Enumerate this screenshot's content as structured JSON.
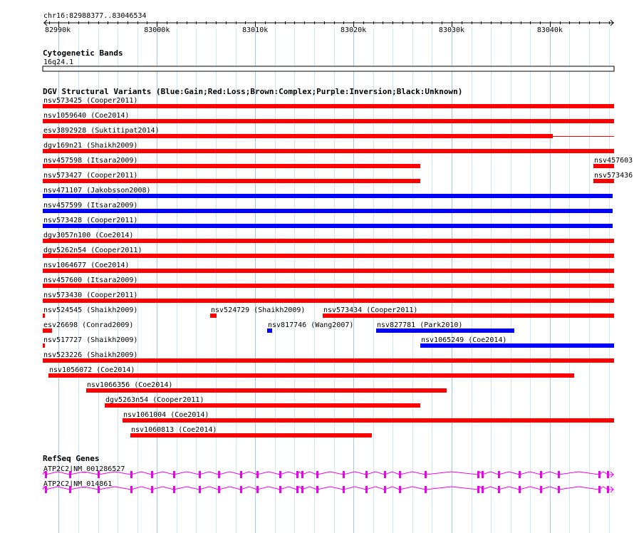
{
  "region": {
    "label": "chr16:82988377..83046534",
    "start": 82988377,
    "end": 83046534,
    "ticks": [
      {
        "pos": 82990000,
        "label": "82990k"
      },
      {
        "pos": 83000000,
        "label": "83000k"
      },
      {
        "pos": 83010000,
        "label": "83010k"
      },
      {
        "pos": 83020000,
        "label": "83020k"
      },
      {
        "pos": 83030000,
        "label": "83030k"
      },
      {
        "pos": 83040000,
        "label": "83040k"
      }
    ]
  },
  "cytobands": {
    "title": "Cytogenetic Bands",
    "band": "16q24.1"
  },
  "dgv": {
    "title": "DGV Structural Variants (Blue:Gain;Red:Loss;Brown:Complex;Purple:Inversion;Black:Unknown)",
    "colors": {
      "loss": "#ff0000",
      "gain": "#0000ff"
    },
    "rows": [
      [
        {
          "name": "nsv573425 (Cooper2011)",
          "type": "loss",
          "start": 82988377,
          "end": 83046534
        }
      ],
      [
        {
          "name": "nsv1059640 (Coe2014)",
          "type": "loss",
          "start": 82988377,
          "end": 83046534
        }
      ],
      [
        {
          "name": "esv3892928 (Suktitipat2014)",
          "type": "loss",
          "start": 82988377,
          "end": 83040300,
          "thin_end": 83046534
        }
      ],
      [
        {
          "name": "dgv169n21 (Shaikh2009)",
          "type": "loss",
          "start": 82988377,
          "end": 83046534
        }
      ],
      [
        {
          "name": "nsv457598 (Itsara2009)",
          "type": "loss",
          "start": 82988377,
          "end": 83026800
        },
        {
          "name": "nsv457603",
          "type": "loss",
          "start": 83044400,
          "end": 83046534
        }
      ],
      [
        {
          "name": "nsv573427 (Cooper2011)",
          "type": "loss",
          "start": 82988377,
          "end": 83026800
        },
        {
          "name": "nsv573436",
          "type": "loss",
          "start": 83044400,
          "end": 83046534
        }
      ],
      [
        {
          "name": "nsv471107 (Jakobsson2008)",
          "type": "gain",
          "start": 82988377,
          "end": 83046400
        }
      ],
      [
        {
          "name": "nsv457599 (Itsara2009)",
          "type": "gain",
          "start": 82988377,
          "end": 83046400
        }
      ],
      [
        {
          "name": "nsv573428 (Cooper2011)",
          "type": "gain",
          "start": 82988377,
          "end": 83046400
        }
      ],
      [
        {
          "name": "dgv3057n100 (Coe2014)",
          "type": "loss",
          "start": 82988377,
          "end": 83046534
        }
      ],
      [
        {
          "name": "dgv5262n54 (Cooper2011)",
          "type": "loss",
          "start": 82988377,
          "end": 83046534
        }
      ],
      [
        {
          "name": "nsv1064677 (Coe2014)",
          "type": "loss",
          "start": 82988377,
          "end": 83046534
        }
      ],
      [
        {
          "name": "nsv457600 (Itsara2009)",
          "type": "loss",
          "start": 82988377,
          "end": 83046534
        }
      ],
      [
        {
          "name": "nsv573430 (Cooper2011)",
          "type": "loss",
          "start": 82988377,
          "end": 83046534
        }
      ],
      [
        {
          "name": "nsv524545 (Shaikh2009)",
          "type": "loss",
          "start": 82988377,
          "end": 82988550
        },
        {
          "name": "nsv524729 (Shaikh2009)",
          "type": "loss",
          "start": 83005450,
          "end": 83006050
        },
        {
          "name": "nsv573434 (Cooper2011)",
          "type": "loss",
          "start": 83016900,
          "end": 83046534
        }
      ],
      [
        {
          "name": "esv26698 (Conrad2009)",
          "type": "loss",
          "start": 82988377,
          "end": 82989300
        },
        {
          "name": "nsv817746 (Wang2007)",
          "type": "gain",
          "start": 83011200,
          "end": 83011700
        },
        {
          "name": "nsv827781 (Park2010)",
          "type": "gain",
          "start": 83022300,
          "end": 83036400
        }
      ],
      [
        {
          "name": "nsv517727 (Shaikh2009)",
          "type": "loss",
          "start": 82988377,
          "end": 82988520
        },
        {
          "name": "nsv1065249 (Coe2014)",
          "type": "gain",
          "start": 83026800,
          "end": 83046534
        }
      ],
      [
        {
          "name": "nsv523226 (Shaikh2009)",
          "type": "loss",
          "start": 82988377,
          "end": 83046534
        }
      ],
      [
        {
          "name": "nsv1056072 (Coe2014)",
          "type": "loss",
          "start": 82988950,
          "end": 83042500
        }
      ],
      [
        {
          "name": "nsv1066356 (Coe2014)",
          "type": "loss",
          "start": 82992800,
          "end": 83029500
        }
      ],
      [
        {
          "name": "dgv5263n54 (Cooper2011)",
          "type": "loss",
          "start": 82994700,
          "end": 83026800
        }
      ],
      [
        {
          "name": "nsv1061004 (Coe2014)",
          "type": "loss",
          "start": 82996500,
          "end": 83046534
        }
      ],
      [
        {
          "name": "nsv1060813 (Coe2014)",
          "type": "loss",
          "start": 82997300,
          "end": 83021900
        }
      ]
    ]
  },
  "refseq": {
    "title": "RefSeq Genes",
    "color": "#ee00ee",
    "genes": [
      {
        "name": "ATP2C2|NM_001286527",
        "start": 82988377,
        "end": 83046534
      },
      {
        "name": "ATP2C2|NM_014861",
        "start": 82988377,
        "end": 83046534
      }
    ],
    "exons": [
      82988700,
      82991100,
      82994000,
      82997400,
      82999500,
      83001700,
      83004300,
      83006300,
      83008500,
      83010200,
      83012500,
      83014300,
      83014800,
      83016300,
      83019000,
      83021300,
      83023200,
      83024700,
      83027300,
      83032700,
      83033100,
      83034800,
      83036900,
      83039100,
      83040900,
      83045000,
      83045900
    ]
  }
}
